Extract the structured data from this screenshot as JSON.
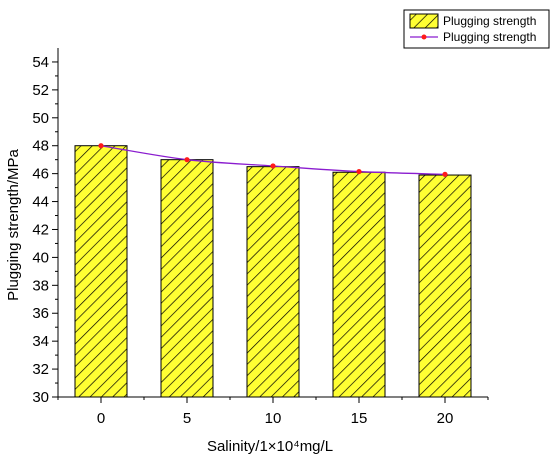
{
  "chart_data": {
    "type": "bar",
    "title": "",
    "categories": [
      "0",
      "5",
      "10",
      "15",
      "20"
    ],
    "series": [
      {
        "name": "Plugging strength",
        "kind": "bar",
        "values": [
          48.0,
          47.0,
          46.5,
          46.1,
          45.9
        ],
        "fill": "#ffff33",
        "pattern": "diagonal-hatch",
        "stroke": "#000000"
      },
      {
        "name": "Plugging strength",
        "kind": "line",
        "values": [
          48.0,
          47.0,
          46.55,
          46.15,
          45.95
        ],
        "line_color": "#8a1ccf",
        "marker_color": "#ff1a1a"
      }
    ],
    "xlabel": "Salinity/1×10⁴mg/L",
    "ylabel": "Plugging strength/MPa",
    "ylim": [
      30,
      55
    ],
    "yticks": [
      30,
      32,
      34,
      36,
      38,
      40,
      42,
      44,
      46,
      48,
      50,
      52,
      54
    ],
    "grid": false,
    "legend_position": "top-right"
  }
}
